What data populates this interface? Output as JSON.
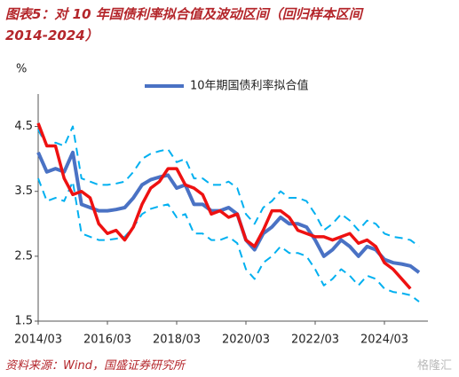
{
  "chart_data": {
    "type": "line",
    "title": [
      "图表5：对 10 年国债利率拟合值及波动区间（回归样本区间",
      "2014-2024）"
    ],
    "y_label": "%",
    "categories": [
      "2014/03",
      null,
      null,
      null,
      null,
      null,
      null,
      null,
      "2016/03",
      null,
      null,
      null,
      null,
      null,
      null,
      null,
      "2018/03",
      null,
      null,
      null,
      null,
      null,
      null,
      null,
      "2020/03",
      null,
      null,
      null,
      null,
      null,
      null,
      null,
      "2022/03",
      null,
      null,
      null,
      null,
      null,
      null,
      null,
      "2024/03",
      null,
      null,
      null,
      null
    ],
    "series": [
      {
        "name": "10年期国债利率拟合值",
        "color": "#4a72c4",
        "width": 4,
        "dash": false,
        "values": [
          4.1,
          3.8,
          3.85,
          3.8,
          4.1,
          3.3,
          3.25,
          3.2,
          3.2,
          3.22,
          3.25,
          3.4,
          3.6,
          3.68,
          3.72,
          3.75,
          3.55,
          3.6,
          3.3,
          3.3,
          3.2,
          3.2,
          3.25,
          3.15,
          2.75,
          2.6,
          2.85,
          2.95,
          3.1,
          3.0,
          3.0,
          2.95,
          2.75,
          2.5,
          2.6,
          2.75,
          2.65,
          2.5,
          2.65,
          2.6,
          2.45,
          2.4,
          2.38,
          2.35,
          2.25
        ]
      },
      {
        "color": "#00b0f0",
        "width": 2,
        "dash": true,
        "values": [
          4.45,
          4.2,
          4.25,
          4.2,
          4.5,
          3.7,
          3.65,
          3.6,
          3.6,
          3.62,
          3.65,
          3.8,
          4.0,
          4.08,
          4.12,
          4.15,
          3.95,
          4.0,
          3.7,
          3.7,
          3.6,
          3.6,
          3.65,
          3.55,
          3.15,
          3.0,
          3.25,
          3.35,
          3.5,
          3.4,
          3.4,
          3.35,
          3.15,
          2.9,
          3.0,
          3.15,
          3.05,
          2.9,
          3.05,
          3.0,
          2.85,
          2.8,
          2.78,
          2.75,
          2.65
        ]
      },
      {
        "color": "#00b0f0",
        "width": 2,
        "dash": true,
        "values": [
          3.7,
          3.35,
          3.4,
          3.35,
          3.65,
          2.85,
          2.8,
          2.75,
          2.75,
          2.77,
          2.8,
          2.95,
          3.15,
          3.23,
          3.27,
          3.3,
          3.1,
          3.15,
          2.85,
          2.85,
          2.75,
          2.75,
          2.8,
          2.7,
          2.3,
          2.15,
          2.4,
          2.5,
          2.65,
          2.55,
          2.55,
          2.5,
          2.3,
          2.05,
          2.15,
          2.3,
          2.2,
          2.05,
          2.2,
          2.15,
          2.0,
          1.95,
          1.93,
          1.9,
          1.8
        ]
      },
      {
        "color": "#ee1111",
        "width": 3.5,
        "dash": false,
        "values": [
          4.55,
          4.2,
          4.2,
          3.7,
          3.45,
          3.5,
          3.4,
          3.0,
          2.85,
          2.9,
          2.75,
          2.95,
          3.3,
          3.55,
          3.65,
          3.85,
          3.85,
          3.6,
          3.55,
          3.45,
          3.15,
          3.2,
          3.1,
          3.15,
          2.75,
          2.65,
          2.9,
          3.2,
          3.2,
          3.1,
          2.9,
          2.85,
          2.8,
          2.8,
          2.75,
          2.8,
          2.85,
          2.7,
          2.75,
          2.65,
          2.4,
          2.3,
          2.15,
          2.0,
          null
        ]
      }
    ],
    "ylim": [
      1.5,
      5.0
    ],
    "yticks": [
      1.5,
      2.5,
      3.5,
      4.5
    ],
    "legend": "top",
    "source": "资料来源：Wind，国盛证券研究所",
    "watermark": "格隆汇"
  }
}
